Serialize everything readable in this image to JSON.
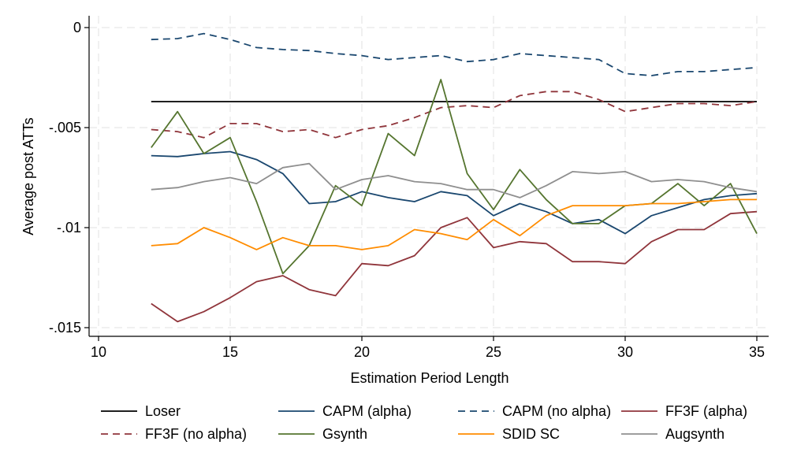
{
  "chart_data": {
    "type": "line",
    "title": "",
    "xlabel": "Estimation Period Length",
    "ylabel": "Average post ATTs",
    "xlim": [
      10,
      35
    ],
    "ylim": [
      -0.015,
      0
    ],
    "x_ticks": [
      10,
      15,
      20,
      25,
      30,
      35
    ],
    "x_tick_labels": [
      "10",
      "15",
      "20",
      "25",
      "30",
      "35"
    ],
    "y_ticks": [
      0,
      -0.005,
      -0.01,
      -0.015
    ],
    "y_tick_labels": [
      "0",
      "-.005",
      "-.01",
      "-.015"
    ],
    "grid": true,
    "x": [
      12,
      13,
      14,
      15,
      16,
      17,
      18,
      19,
      20,
      21,
      22,
      23,
      24,
      25,
      26,
      27,
      28,
      29,
      30,
      31,
      32,
      33,
      34,
      35
    ],
    "reference_line": {
      "name": "Loser",
      "y": -0.0037,
      "x_range": [
        12,
        35
      ],
      "color": "#000000",
      "dash": "solid"
    },
    "series": [
      {
        "name": "CAPM (alpha)",
        "color": "#1a476f",
        "dash": "solid",
        "values": [
          -0.0064,
          -0.00645,
          -0.0063,
          -0.0062,
          -0.0066,
          -0.0073,
          -0.0088,
          -0.0087,
          -0.0082,
          -0.0085,
          -0.0087,
          -0.0082,
          -0.0084,
          -0.0094,
          -0.0088,
          -0.0092,
          -0.0098,
          -0.0096,
          -0.0103,
          -0.0094,
          -0.009,
          -0.0086,
          -0.0084,
          -0.0083
        ]
      },
      {
        "name": "CAPM (no alpha)",
        "color": "#1a476f",
        "dash": "dashed",
        "values": [
          -0.0006,
          -0.00055,
          -0.0003,
          -0.0006,
          -0.001,
          -0.0011,
          -0.00115,
          -0.0013,
          -0.0014,
          -0.0016,
          -0.0015,
          -0.0014,
          -0.0017,
          -0.0016,
          -0.0013,
          -0.0014,
          -0.0015,
          -0.0016,
          -0.0023,
          -0.0024,
          -0.0022,
          -0.0022,
          -0.0021,
          -0.002
        ]
      },
      {
        "name": "FF3F (alpha)",
        "color": "#90353b",
        "dash": "solid",
        "values": [
          -0.0138,
          -0.0147,
          -0.0142,
          -0.0135,
          -0.0127,
          -0.0124,
          -0.0131,
          -0.0134,
          -0.0118,
          -0.0119,
          -0.0114,
          -0.01,
          -0.0095,
          -0.011,
          -0.0107,
          -0.0108,
          -0.0117,
          -0.0117,
          -0.0118,
          -0.0107,
          -0.0101,
          -0.0101,
          -0.0093,
          -0.0092
        ]
      },
      {
        "name": "FF3F (no alpha)",
        "color": "#90353b",
        "dash": "dashed",
        "values": [
          -0.0051,
          -0.0052,
          -0.0055,
          -0.0048,
          -0.0048,
          -0.0052,
          -0.0051,
          -0.0055,
          -0.0051,
          -0.0049,
          -0.0045,
          -0.004,
          -0.0039,
          -0.004,
          -0.0034,
          -0.0032,
          -0.0032,
          -0.0036,
          -0.0042,
          -0.004,
          -0.0038,
          -0.0038,
          -0.0039,
          -0.0037
        ]
      },
      {
        "name": "Gsynth",
        "color": "#55752f",
        "dash": "solid",
        "values": [
          -0.006,
          -0.0042,
          -0.0063,
          -0.0055,
          -0.0087,
          -0.0123,
          -0.0109,
          -0.0079,
          -0.0089,
          -0.0053,
          -0.0064,
          -0.0026,
          -0.0073,
          -0.0091,
          -0.0071,
          -0.0086,
          -0.0098,
          -0.0098,
          -0.0089,
          -0.0088,
          -0.0078,
          -0.0089,
          -0.0078,
          -0.0103
        ]
      },
      {
        "name": "SDID SC",
        "color": "#ff8c00",
        "dash": "solid",
        "values": [
          -0.0109,
          -0.0108,
          -0.01,
          -0.0105,
          -0.0111,
          -0.0105,
          -0.0109,
          -0.0109,
          -0.0111,
          -0.0109,
          -0.0101,
          -0.0103,
          -0.0106,
          -0.0096,
          -0.0104,
          -0.0094,
          -0.0089,
          -0.0089,
          -0.0089,
          -0.0088,
          -0.0088,
          -0.0087,
          -0.0086,
          -0.0086
        ]
      },
      {
        "name": "Augsynth",
        "color": "#8f8f8f",
        "dash": "solid",
        "values": [
          -0.0081,
          -0.008,
          -0.0077,
          -0.0075,
          -0.0078,
          -0.007,
          -0.0068,
          -0.0081,
          -0.0076,
          -0.0074,
          -0.0077,
          -0.0078,
          -0.0081,
          -0.0081,
          -0.0085,
          -0.0079,
          -0.0072,
          -0.0073,
          -0.0072,
          -0.0077,
          -0.0076,
          -0.0077,
          -0.008,
          -0.0082
        ]
      }
    ],
    "legend": {
      "position": "bottom",
      "columns": 4,
      "entries": [
        {
          "name": "Loser",
          "color": "#000000",
          "dash": "solid"
        },
        {
          "name": "CAPM (alpha)",
          "color": "#1a476f",
          "dash": "solid"
        },
        {
          "name": "CAPM (no alpha)",
          "color": "#1a476f",
          "dash": "dashed"
        },
        {
          "name": "FF3F (alpha)",
          "color": "#90353b",
          "dash": "solid"
        },
        {
          "name": "FF3F (no alpha)",
          "color": "#90353b",
          "dash": "dashed"
        },
        {
          "name": "Gsynth",
          "color": "#55752f",
          "dash": "solid"
        },
        {
          "name": "SDID SC",
          "color": "#ff8c00",
          "dash": "solid"
        },
        {
          "name": "Augsynth",
          "color": "#8f8f8f",
          "dash": "solid"
        }
      ]
    }
  }
}
